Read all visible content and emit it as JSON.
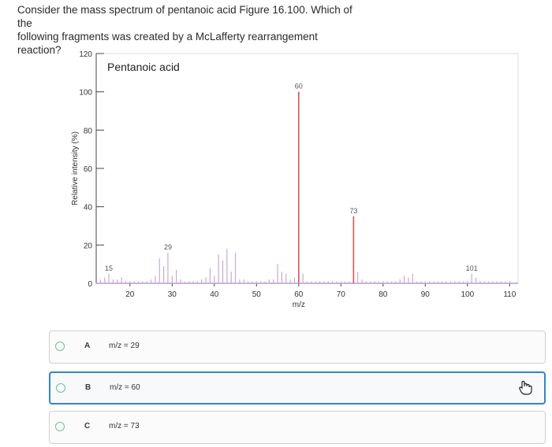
{
  "question": {
    "line1": "Consider the mass spectrum of pentanoic acid Figure 16.100. Which of the",
    "line2": "following fragments was created by a McLafferty rearrangement reaction?"
  },
  "chart_data": {
    "type": "bar",
    "title": "Pentanoic acid",
    "xlabel": "m/z",
    "ylabel": "Relative intensity (%)",
    "xlim": [
      12,
      112
    ],
    "ylim": [
      0,
      120
    ],
    "x_ticks": [
      20,
      30,
      40,
      50,
      60,
      70,
      80,
      90,
      100,
      110
    ],
    "y_ticks": [
      0,
      20,
      40,
      60,
      80,
      100,
      120
    ],
    "peak_labels": [
      {
        "x": 15,
        "text": "15"
      },
      {
        "x": 29,
        "text": "29"
      },
      {
        "x": 60,
        "text": "60"
      },
      {
        "x": 73,
        "text": "73"
      },
      {
        "x": 101,
        "text": "101"
      }
    ],
    "highlight_color": "#d9534f",
    "bar_color": "#c9a9d8",
    "peaks": [
      {
        "x": 13,
        "y": 2
      },
      {
        "x": 14,
        "y": 3
      },
      {
        "x": 15,
        "y": 5
      },
      {
        "x": 16,
        "y": 2
      },
      {
        "x": 17,
        "y": 2
      },
      {
        "x": 18,
        "y": 3
      },
      {
        "x": 19,
        "y": 1
      },
      {
        "x": 20,
        "y": 1
      },
      {
        "x": 21,
        "y": 1
      },
      {
        "x": 22,
        "y": 1
      },
      {
        "x": 23,
        "y": 1
      },
      {
        "x": 24,
        "y": 1
      },
      {
        "x": 25,
        "y": 2
      },
      {
        "x": 26,
        "y": 4
      },
      {
        "x": 27,
        "y": 13
      },
      {
        "x": 28,
        "y": 9
      },
      {
        "x": 29,
        "y": 16
      },
      {
        "x": 30,
        "y": 4
      },
      {
        "x": 31,
        "y": 7
      },
      {
        "x": 32,
        "y": 2
      },
      {
        "x": 33,
        "y": 1
      },
      {
        "x": 34,
        "y": 1
      },
      {
        "x": 35,
        "y": 1
      },
      {
        "x": 36,
        "y": 1
      },
      {
        "x": 37,
        "y": 2
      },
      {
        "x": 38,
        "y": 3
      },
      {
        "x": 39,
        "y": 8
      },
      {
        "x": 40,
        "y": 4
      },
      {
        "x": 41,
        "y": 15
      },
      {
        "x": 42,
        "y": 12
      },
      {
        "x": 43,
        "y": 18
      },
      {
        "x": 44,
        "y": 6
      },
      {
        "x": 45,
        "y": 16
      },
      {
        "x": 46,
        "y": 2
      },
      {
        "x": 47,
        "y": 2
      },
      {
        "x": 48,
        "y": 1
      },
      {
        "x": 49,
        "y": 1
      },
      {
        "x": 50,
        "y": 1
      },
      {
        "x": 51,
        "y": 1
      },
      {
        "x": 52,
        "y": 1
      },
      {
        "x": 53,
        "y": 2
      },
      {
        "x": 54,
        "y": 2
      },
      {
        "x": 55,
        "y": 10
      },
      {
        "x": 56,
        "y": 6
      },
      {
        "x": 57,
        "y": 5
      },
      {
        "x": 58,
        "y": 2
      },
      {
        "x": 59,
        "y": 3
      },
      {
        "x": 60,
        "y": 100,
        "highlight": true
      },
      {
        "x": 61,
        "y": 5
      },
      {
        "x": 62,
        "y": 1
      },
      {
        "x": 63,
        "y": 1
      },
      {
        "x": 64,
        "y": 1
      },
      {
        "x": 65,
        "y": 1
      },
      {
        "x": 66,
        "y": 1
      },
      {
        "x": 67,
        "y": 1
      },
      {
        "x": 68,
        "y": 1
      },
      {
        "x": 69,
        "y": 1
      },
      {
        "x": 70,
        "y": 1
      },
      {
        "x": 71,
        "y": 1
      },
      {
        "x": 72,
        "y": 1
      },
      {
        "x": 73,
        "y": 35,
        "highlight": true
      },
      {
        "x": 74,
        "y": 6
      },
      {
        "x": 75,
        "y": 2
      },
      {
        "x": 76,
        "y": 1
      },
      {
        "x": 77,
        "y": 1
      },
      {
        "x": 78,
        "y": 1
      },
      {
        "x": 79,
        "y": 1
      },
      {
        "x": 80,
        "y": 1
      },
      {
        "x": 81,
        "y": 1
      },
      {
        "x": 82,
        "y": 1
      },
      {
        "x": 83,
        "y": 1
      },
      {
        "x": 84,
        "y": 2
      },
      {
        "x": 85,
        "y": 4
      },
      {
        "x": 86,
        "y": 3
      },
      {
        "x": 87,
        "y": 5
      },
      {
        "x": 88,
        "y": 1
      },
      {
        "x": 89,
        "y": 1
      },
      {
        "x": 90,
        "y": 1
      },
      {
        "x": 91,
        "y": 1
      },
      {
        "x": 92,
        "y": 1
      },
      {
        "x": 93,
        "y": 1
      },
      {
        "x": 94,
        "y": 1
      },
      {
        "x": 95,
        "y": 1
      },
      {
        "x": 96,
        "y": 1
      },
      {
        "x": 97,
        "y": 1
      },
      {
        "x": 98,
        "y": 1
      },
      {
        "x": 99,
        "y": 1
      },
      {
        "x": 100,
        "y": 1
      },
      {
        "x": 101,
        "y": 5
      },
      {
        "x": 102,
        "y": 3
      },
      {
        "x": 103,
        "y": 1
      },
      {
        "x": 104,
        "y": 1
      },
      {
        "x": 105,
        "y": 1
      },
      {
        "x": 106,
        "y": 1
      },
      {
        "x": 107,
        "y": 1
      },
      {
        "x": 108,
        "y": 1
      },
      {
        "x": 109,
        "y": 1
      },
      {
        "x": 110,
        "y": 1
      }
    ]
  },
  "choices": [
    {
      "letter": "A",
      "text": "m/z = 29"
    },
    {
      "letter": "B",
      "text": "m/z = 60"
    },
    {
      "letter": "C",
      "text": "m/z = 73"
    }
  ]
}
